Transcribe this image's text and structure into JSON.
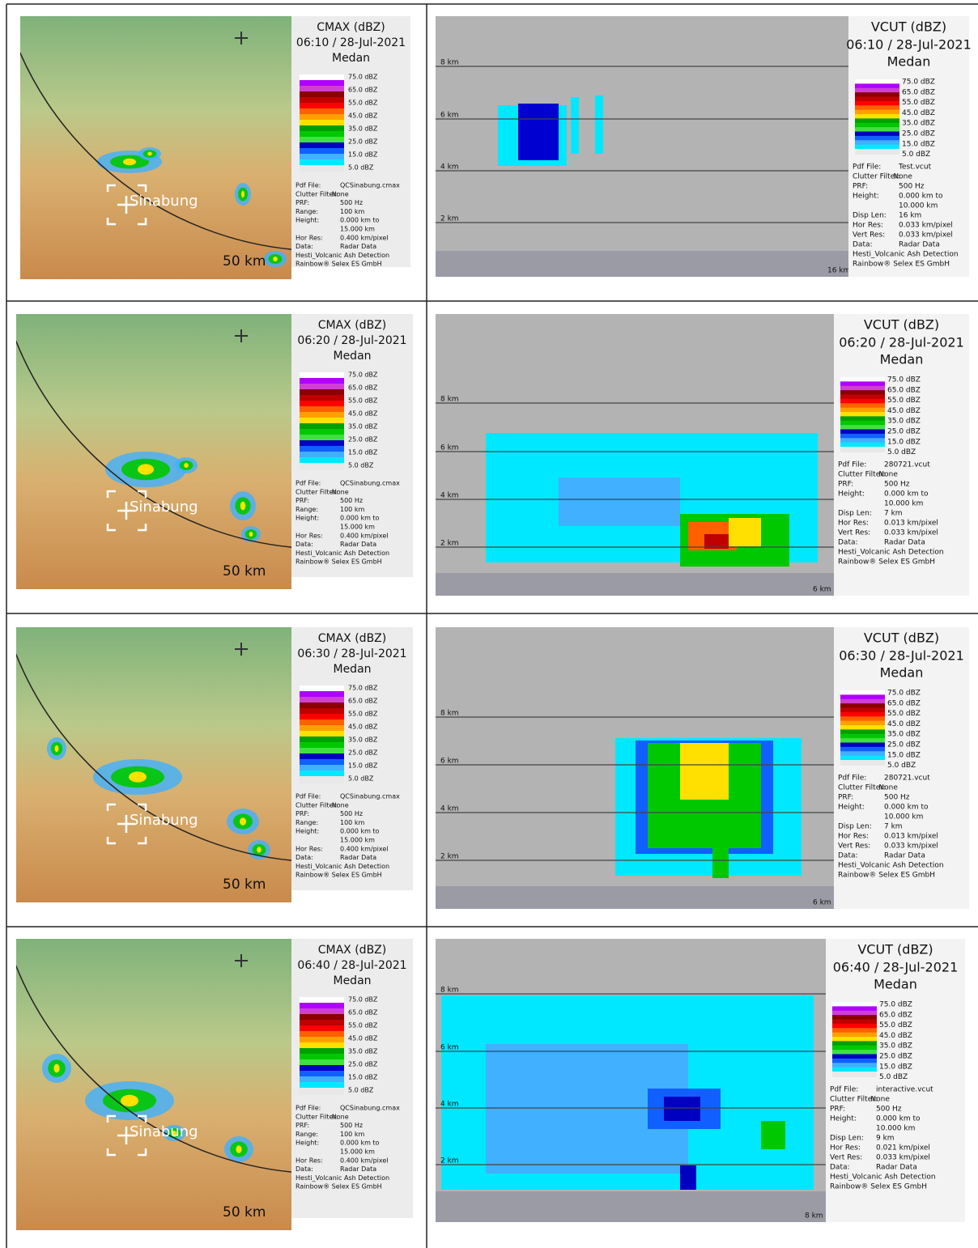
{
  "legend_labels": [
    "75.0 dBZ",
    "65.0 dBZ",
    "55.0 dBZ",
    "45.0 dBZ",
    "35.0 dBZ",
    "25.0 dBZ",
    "15.0 dBZ",
    "5.0 dBZ"
  ],
  "rows": [
    {
      "cmax": {
        "title": "CMAX (dBZ)",
        "time": "06:10 / 28-Jul-2021",
        "place": "Medan",
        "volcano": "Sinabung",
        "range_label": "50 km",
        "info": [
          {
            "label": "Pdf File:",
            "value": "QCSinabung.cmax"
          },
          {
            "label": "Clutter Filter:",
            "value": "None"
          },
          {
            "label": "PRF:",
            "value": "500 Hz"
          },
          {
            "label": "Range:",
            "value": "100 km"
          },
          {
            "label": "Height:",
            "value": "0.000 km to"
          },
          {
            "value": "15.000 km"
          },
          {
            "label": "Hor Res:",
            "value": "0.400 km/pixel"
          },
          {
            "label": "Data:",
            "value": "Radar Data"
          },
          {
            "text": "Hesti_Volcanic Ash Detection"
          },
          {
            "text": "Rainbow® Selex ES GmbH"
          }
        ]
      },
      "vcut": {
        "title": "VCUT (dBZ)",
        "time": "06:10 / 28-Jul-2021",
        "place": "Medan",
        "heights": [
          "8 km",
          "6 km",
          "4 km",
          "2 km"
        ],
        "distance": "16 km",
        "info": [
          {
            "label": "Pdf File:",
            "value": "Test.vcut"
          },
          {
            "label": "Clutter Filter:",
            "value": "None"
          },
          {
            "label": "PRF:",
            "value": "500 Hz"
          },
          {
            "label": "Height:",
            "value": "0.000 km to"
          },
          {
            "value": "10.000 km"
          },
          {
            "label": "Disp Len:",
            "value": "16 km"
          },
          {
            "label": "Hor Res:",
            "value": "0.033 km/pixel"
          },
          {
            "label": "Vert Res:",
            "value": "0.033 km/pixel"
          },
          {
            "label": "Data:",
            "value": "Radar Data"
          },
          {
            "text": "Hesti_Volcanic Ash Detection"
          },
          {
            "text": "Rainbow® Selex ES GmbH"
          }
        ]
      }
    },
    {
      "cmax": {
        "title": "CMAX (dBZ)",
        "time": "06:20 / 28-Jul-2021",
        "place": "Medan",
        "volcano": "Sinabung",
        "range_label": "50 km",
        "info": [
          {
            "label": "Pdf File:",
            "value": "QCSinabung.cmax"
          },
          {
            "label": "Clutter Filter:",
            "value": "None"
          },
          {
            "label": "PRF:",
            "value": "500 Hz"
          },
          {
            "label": "Range:",
            "value": "100 km"
          },
          {
            "label": "Height:",
            "value": "0.000 km to"
          },
          {
            "value": "15.000 km"
          },
          {
            "label": "Hor Res:",
            "value": "0.400 km/pixel"
          },
          {
            "label": "Data:",
            "value": "Radar Data"
          },
          {
            "text": "Hesti_Volcanic Ash Detection"
          },
          {
            "text": "Rainbow® Selex ES GmbH"
          }
        ]
      },
      "vcut": {
        "title": "VCUT (dBZ)",
        "time": "06:20 / 28-Jul-2021",
        "place": "Medan",
        "heights": [
          "8 km",
          "6 km",
          "4 km",
          "2 km"
        ],
        "distance": "6 km",
        "info": [
          {
            "label": "Pdf File:",
            "value": "280721.vcut"
          },
          {
            "label": "Clutter Filter:",
            "value": "None"
          },
          {
            "label": "PRF:",
            "value": "500 Hz"
          },
          {
            "label": "Height:",
            "value": "0.000 km to"
          },
          {
            "value": "10.000 km"
          },
          {
            "label": "Disp Len:",
            "value": "7 km"
          },
          {
            "label": "Hor Res:",
            "value": "0.013 km/pixel"
          },
          {
            "label": "Vert Res:",
            "value": "0.033 km/pixel"
          },
          {
            "label": "Data:",
            "value": "Radar Data"
          },
          {
            "text": "Hesti_Volcanic Ash Detection"
          },
          {
            "text": "Rainbow® Selex ES GmbH"
          }
        ]
      }
    },
    {
      "cmax": {
        "title": "CMAX (dBZ)",
        "time": "06:30 / 28-Jul-2021",
        "place": "Medan",
        "volcano": "Sinabung",
        "range_label": "50 km",
        "info": [
          {
            "label": "Pdf File:",
            "value": "QCSinabung.cmax"
          },
          {
            "label": "Clutter Filter:",
            "value": "None"
          },
          {
            "label": "PRF:",
            "value": "500 Hz"
          },
          {
            "label": "Range:",
            "value": "100 km"
          },
          {
            "label": "Height:",
            "value": "0.000 km to"
          },
          {
            "value": "15.000 km"
          },
          {
            "label": "Hor Res:",
            "value": "0.400 km/pixel"
          },
          {
            "label": "Data:",
            "value": "Radar Data"
          },
          {
            "text": "Hesti_Volcanic Ash Detection"
          },
          {
            "text": "Rainbow® Selex ES GmbH"
          }
        ]
      },
      "vcut": {
        "title": "VCUT (dBZ)",
        "time": "06:30 / 28-Jul-2021",
        "place": "Medan",
        "heights": [
          "8 km",
          "6 km",
          "4 km",
          "2 km"
        ],
        "distance": "6 km",
        "info": [
          {
            "label": "Pdf File:",
            "value": "280721.vcut"
          },
          {
            "label": "Clutter Filter:",
            "value": "None"
          },
          {
            "label": "PRF:",
            "value": "500 Hz"
          },
          {
            "label": "Height:",
            "value": "0.000 km to"
          },
          {
            "value": "10.000 km"
          },
          {
            "label": "Disp Len:",
            "value": "7 km"
          },
          {
            "label": "Hor Res:",
            "value": "0.013 km/pixel"
          },
          {
            "label": "Vert Res:",
            "value": "0.033 km/pixel"
          },
          {
            "label": "Data:",
            "value": "Radar Data"
          },
          {
            "text": "Hesti_Volcanic Ash Detection"
          },
          {
            "text": "Rainbow® Selex ES GmbH"
          }
        ]
      }
    },
    {
      "cmax": {
        "title": "CMAX (dBZ)",
        "time": "06:40 / 28-Jul-2021",
        "place": "Medan",
        "volcano": "Sinabung",
        "range_label": "50 km",
        "info": [
          {
            "label": "Pdf File:",
            "value": "QCSinabung.cmax"
          },
          {
            "label": "Clutter Filter:",
            "value": "None"
          },
          {
            "label": "PRF:",
            "value": "500 Hz"
          },
          {
            "label": "Range:",
            "value": "100 km"
          },
          {
            "label": "Height:",
            "value": "0.000 km to"
          },
          {
            "value": "15.000 km"
          },
          {
            "label": "Hor Res:",
            "value": "0.400 km/pixel"
          },
          {
            "label": "Data:",
            "value": "Radar Data"
          },
          {
            "text": "Hesti_Volcanic Ash Detection"
          },
          {
            "text": "Rainbow® Selex ES GmbH"
          }
        ]
      },
      "vcut": {
        "title": "VCUT (dBZ)",
        "time": "06:40 / 28-Jul-2021",
        "place": "Medan",
        "heights": [
          "8 km",
          "6 km",
          "4 km",
          "2 km"
        ],
        "distance": "8 km",
        "info": [
          {
            "label": "Pdf File:",
            "value": "interactive.vcut"
          },
          {
            "label": "Clutter Filter:",
            "value": "None"
          },
          {
            "label": "PRF:",
            "value": "500 Hz"
          },
          {
            "label": "Height:",
            "value": "0.000 km to"
          },
          {
            "value": "10.000 km"
          },
          {
            "label": "Disp Len:",
            "value": "9 km"
          },
          {
            "label": "Hor Res:",
            "value": "0.021 km/pixel"
          },
          {
            "label": "Vert Res:",
            "value": "0.033 km/pixel"
          },
          {
            "label": "Data:",
            "value": "Radar Data"
          },
          {
            "text": "Hesti_Volcanic Ash Detection"
          },
          {
            "text": "Rainbow® Selex ES GmbH"
          }
        ]
      }
    }
  ]
}
